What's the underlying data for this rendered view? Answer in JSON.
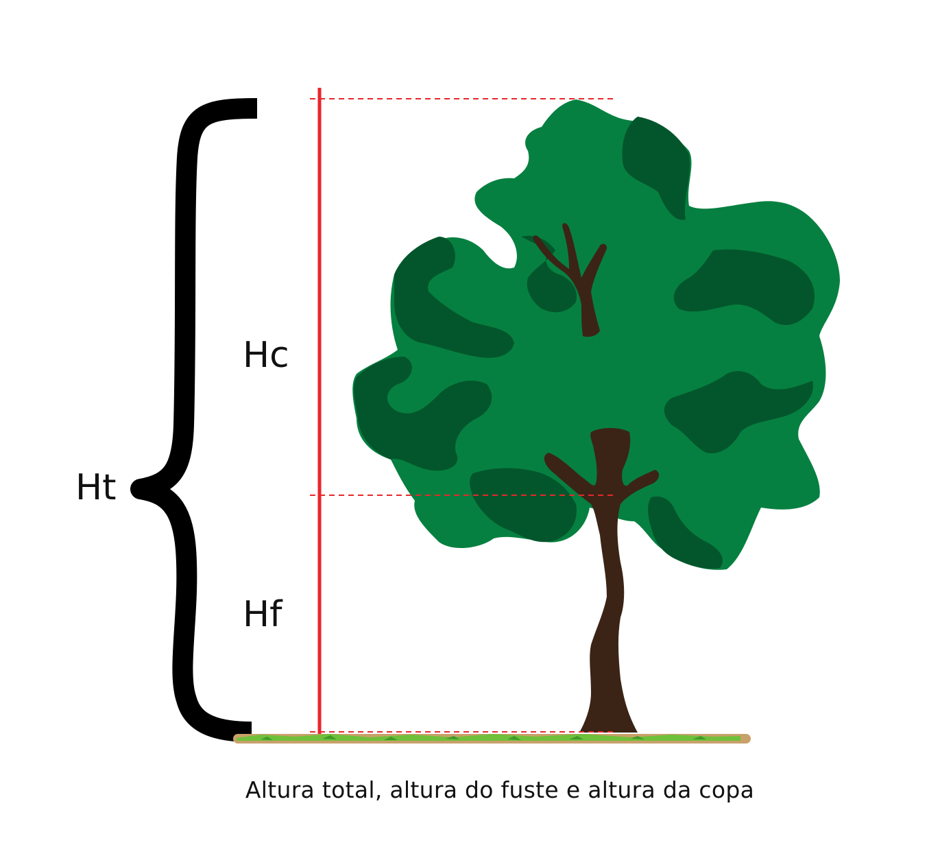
{
  "labels": {
    "total_height": "Ht",
    "crown_height": "Hc",
    "bole_height": "Hf"
  },
  "caption": "Altura total, altura do fuste e altura da copa",
  "colors": {
    "measure_line": "#e8262a",
    "brace": "#000000",
    "foliage_light": "#068040",
    "foliage_dark": "#03562c",
    "trunk": "#3b2416",
    "ground_soil": "#c8a16a",
    "ground_grass": "#6fc03a"
  },
  "icons": {
    "tree": "tree-icon",
    "brace": "curly-brace-icon"
  }
}
